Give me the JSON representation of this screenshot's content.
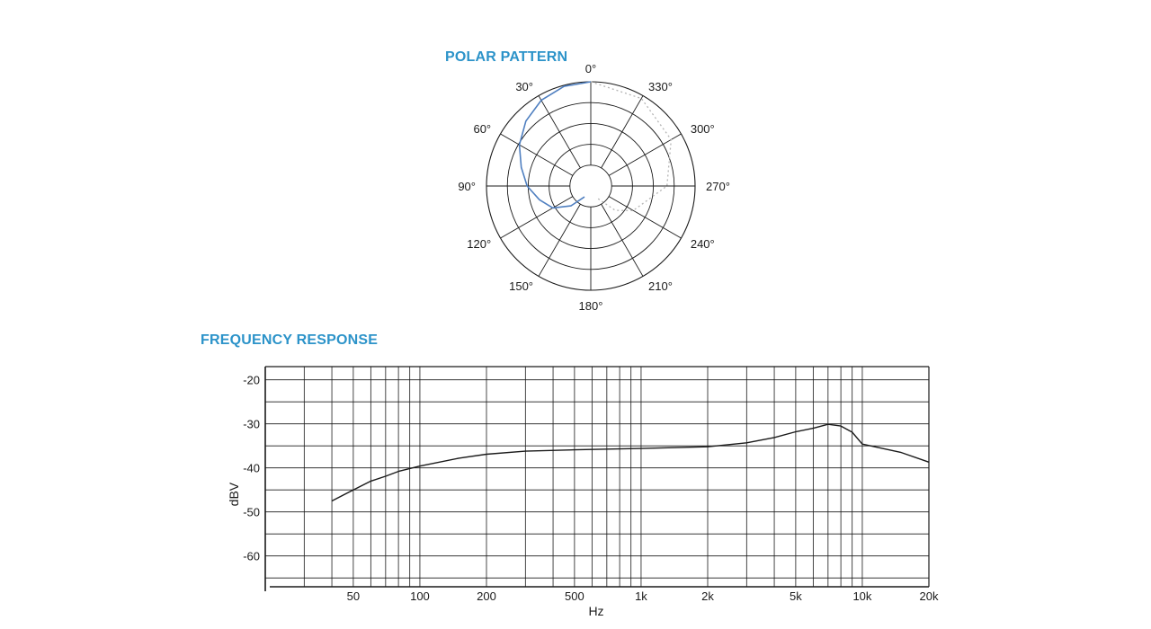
{
  "polar": {
    "title": "POLAR PATTERN",
    "colors": {
      "front": "#4f7fc0",
      "rear": "#b4b4b4",
      "grid": "#1a1a1a"
    }
  },
  "frequency": {
    "title": "FREQUENCY RESPONSE",
    "line_color": "#1a1a1a"
  },
  "chart_data": [
    {
      "type": "polar",
      "title": "POLAR PATTERN",
      "angle_labels": [
        "0°",
        "30°",
        "60°",
        "90°",
        "120°",
        "150°",
        "180°",
        "210°",
        "240°",
        "270°",
        "300°",
        "330°"
      ],
      "angle_values": [
        0,
        30,
        60,
        90,
        120,
        150,
        180,
        210,
        240,
        270,
        300,
        330
      ],
      "rings": 5,
      "series": [
        {
          "style": "solid-blue",
          "angles": [
            0,
            15,
            30,
            45,
            60,
            75,
            90,
            105,
            120,
            135,
            150
          ],
          "radius": [
            1.0,
            0.99,
            0.95,
            0.88,
            0.79,
            0.69,
            0.61,
            0.51,
            0.42,
            0.27,
            0.12
          ]
        },
        {
          "style": "dotted-gray",
          "angles": [
            0,
            330,
            300,
            270,
            240,
            225,
            210
          ],
          "radius": [
            1.0,
            0.97,
            0.89,
            0.73,
            0.47,
            0.33,
            0.14
          ]
        }
      ]
    },
    {
      "type": "line",
      "title": "FREQUENCY RESPONSE",
      "xlabel": "Hz",
      "ylabel": "dBV",
      "xscale": "log",
      "xlim": [
        20,
        20000
      ],
      "ylim": [
        -67,
        -17
      ],
      "grid": true,
      "x_ticks": [
        {
          "value": 50,
          "label": "50"
        },
        {
          "value": 100,
          "label": "100"
        },
        {
          "value": 200,
          "label": "200"
        },
        {
          "value": 500,
          "label": "500"
        },
        {
          "value": 1000,
          "label": "1k"
        },
        {
          "value": 2000,
          "label": "2k"
        },
        {
          "value": 5000,
          "label": "5k"
        },
        {
          "value": 10000,
          "label": "10k"
        },
        {
          "value": 20000,
          "label": "20k"
        }
      ],
      "y_ticks": [
        {
          "value": -20,
          "label": "-20"
        },
        {
          "value": -30,
          "label": "-30"
        },
        {
          "value": -40,
          "label": "-40"
        },
        {
          "value": -50,
          "label": "-50"
        },
        {
          "value": -60,
          "label": "-60"
        }
      ],
      "x_gridlines": [
        30,
        40,
        50,
        60,
        70,
        80,
        90,
        100,
        200,
        300,
        400,
        500,
        600,
        700,
        800,
        900,
        1000,
        2000,
        3000,
        4000,
        5000,
        6000,
        7000,
        8000,
        9000,
        10000
      ],
      "y_gridlines": [
        -20,
        -25,
        -30,
        -35,
        -40,
        -45,
        -50,
        -55,
        -60,
        -65
      ],
      "series": [
        {
          "x": [
            40,
            50,
            60,
            70,
            80,
            100,
            150,
            200,
            300,
            500,
            1000,
            2000,
            3000,
            4000,
            5000,
            6000,
            7000,
            8000,
            9000,
            10000,
            15000,
            20000
          ],
          "y": [
            -47.5,
            -45.0,
            -43.0,
            -41.9,
            -40.8,
            -39.6,
            -37.8,
            -36.9,
            -36.2,
            -35.9,
            -35.6,
            -35.2,
            -34.3,
            -33.1,
            -31.8,
            -31.0,
            -30.1,
            -30.5,
            -31.9,
            -34.6,
            -36.5,
            -38.7
          ]
        }
      ]
    }
  ]
}
